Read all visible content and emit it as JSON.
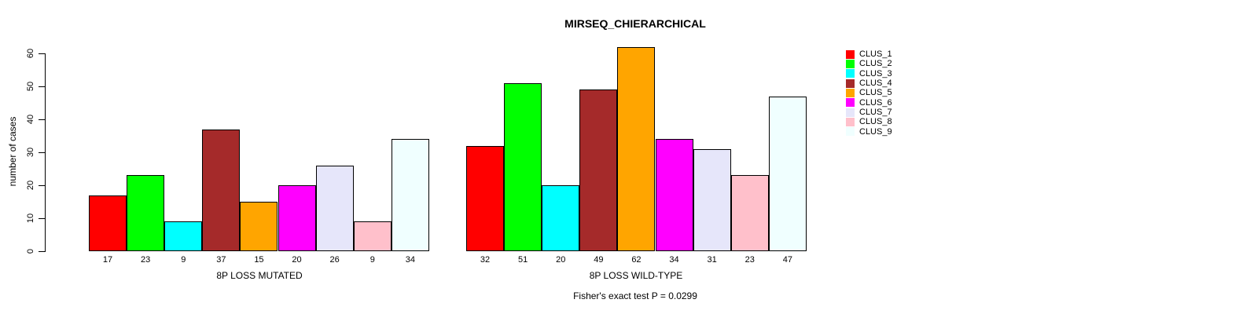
{
  "chart_data": {
    "type": "bar",
    "title": "MIRSEQ_CHIERARCHICAL",
    "ylabel": "number of cases",
    "xlabel": "",
    "ylim": [
      0,
      60
    ],
    "yticks": [
      0,
      10,
      20,
      30,
      40,
      50,
      60
    ],
    "grid": false,
    "legend_position": "right",
    "bar_value_labels_shown": true,
    "categories": [
      "8P LOSS MUTATED",
      "8P LOSS WILD-TYPE"
    ],
    "series": [
      {
        "name": "CLUS_1",
        "color": "#FF0000",
        "values": [
          17,
          32
        ]
      },
      {
        "name": "CLUS_2",
        "color": "#00FF00",
        "values": [
          23,
          51
        ]
      },
      {
        "name": "CLUS_3",
        "color": "#00FFFF",
        "values": [
          9,
          20
        ]
      },
      {
        "name": "CLUS_4",
        "color": "#A52A2A",
        "values": [
          37,
          49
        ]
      },
      {
        "name": "CLUS_5",
        "color": "#FFA500",
        "values": [
          15,
          62
        ]
      },
      {
        "name": "CLUS_6",
        "color": "#FF00FF",
        "values": [
          20,
          34
        ]
      },
      {
        "name": "CLUS_7",
        "color": "#E6E6FA",
        "values": [
          26,
          31
        ]
      },
      {
        "name": "CLUS_8",
        "color": "#FFC0CB",
        "values": [
          9,
          23
        ]
      },
      {
        "name": "CLUS_9",
        "color": "#F0FFFF",
        "values": [
          34,
          47
        ]
      }
    ],
    "note": "Fisher's exact test P = 0.0299"
  }
}
